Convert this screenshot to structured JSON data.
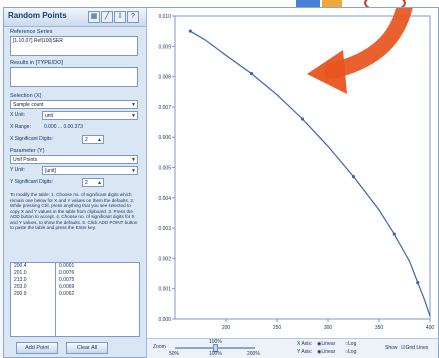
{
  "app": {
    "title": "Random Points",
    "toolbar": [
      "grid-icon",
      "line-icon",
      "export-icon",
      "help-icon"
    ]
  },
  "left": {
    "reference_label": "Reference Series",
    "reference_value": "[1.10.07] Ref|100|SER",
    "results_label": "Results in [TYPE/DO]",
    "selection_label": "Selection (X)",
    "selection_value": "Sample count",
    "unit_label": "X Unit:",
    "unit_value": "unit",
    "range_label": "X Range:",
    "range_value": "0.000 ... 0.00.373",
    "sig_label": "X Significant Digits:",
    "sig_value": "2",
    "param_label": "Parameter (Y)",
    "param_value": "Unif Points",
    "yunit_label": "Y Unit:",
    "yunit_value": "[unit]",
    "ysig_label": "Y Significant Digits:",
    "ysig_value": "2",
    "instructions": "To modify the table: 1. Choose no. of significant digits which remain one below for X and Y values on them the defaults. 2. While pressing Ctrl, press anything that you see selected to copy X and Y values in the table from clipboard. 3. Press the ADD button to accept. 4. Choose no. of significant digits for X and Y values, to show the defaults. 5. Click ADD POINT button to paste the table and press the Enter key.",
    "table_x": [
      "200.4",
      "201.0",
      "213.0",
      "203.0",
      "200.9"
    ],
    "table_y": [
      "0.0001",
      "0.0076",
      "0.0075",
      "0.0069",
      "0.0062"
    ],
    "add_button": "Add Point",
    "clear_button": "Clear All"
  },
  "bottom": {
    "zoom_label": "Zoom",
    "zoom_value": "100%",
    "zoom_ticks": [
      "50%",
      "100%",
      "200%"
    ],
    "xscale_label": "X Axis:",
    "xscale_opts": [
      "Linear",
      "Log"
    ],
    "yscale_label": "Y Axis:",
    "yscale_opts": [
      "Linear",
      "Log"
    ],
    "show_label": "Show",
    "grid_lines": "Grid Lines"
  },
  "chart_data": {
    "type": "line",
    "x": [
      165,
      180,
      200,
      225,
      250,
      275,
      300,
      325,
      350,
      365,
      380,
      388,
      395,
      400
    ],
    "y": [
      0.0095,
      0.0092,
      0.0087,
      0.0081,
      0.0074,
      0.0066,
      0.0057,
      0.0047,
      0.0036,
      0.0028,
      0.0019,
      0.0012,
      0.0006,
      0.0001
    ],
    "marker_x": [
      165,
      225,
      275,
      325,
      365,
      388
    ],
    "xlim": [
      150,
      400
    ],
    "ylim": [
      0,
      0.01
    ],
    "xticks": [
      200,
      250,
      300,
      350,
      400
    ],
    "yticks": [
      "0.000",
      "0.001",
      "0.002",
      "0.003",
      "0.004",
      "0.005",
      "0.006",
      "0.007",
      "0.008",
      "0.009",
      "0.010"
    ],
    "color": "#3a66b0",
    "grid": false
  }
}
